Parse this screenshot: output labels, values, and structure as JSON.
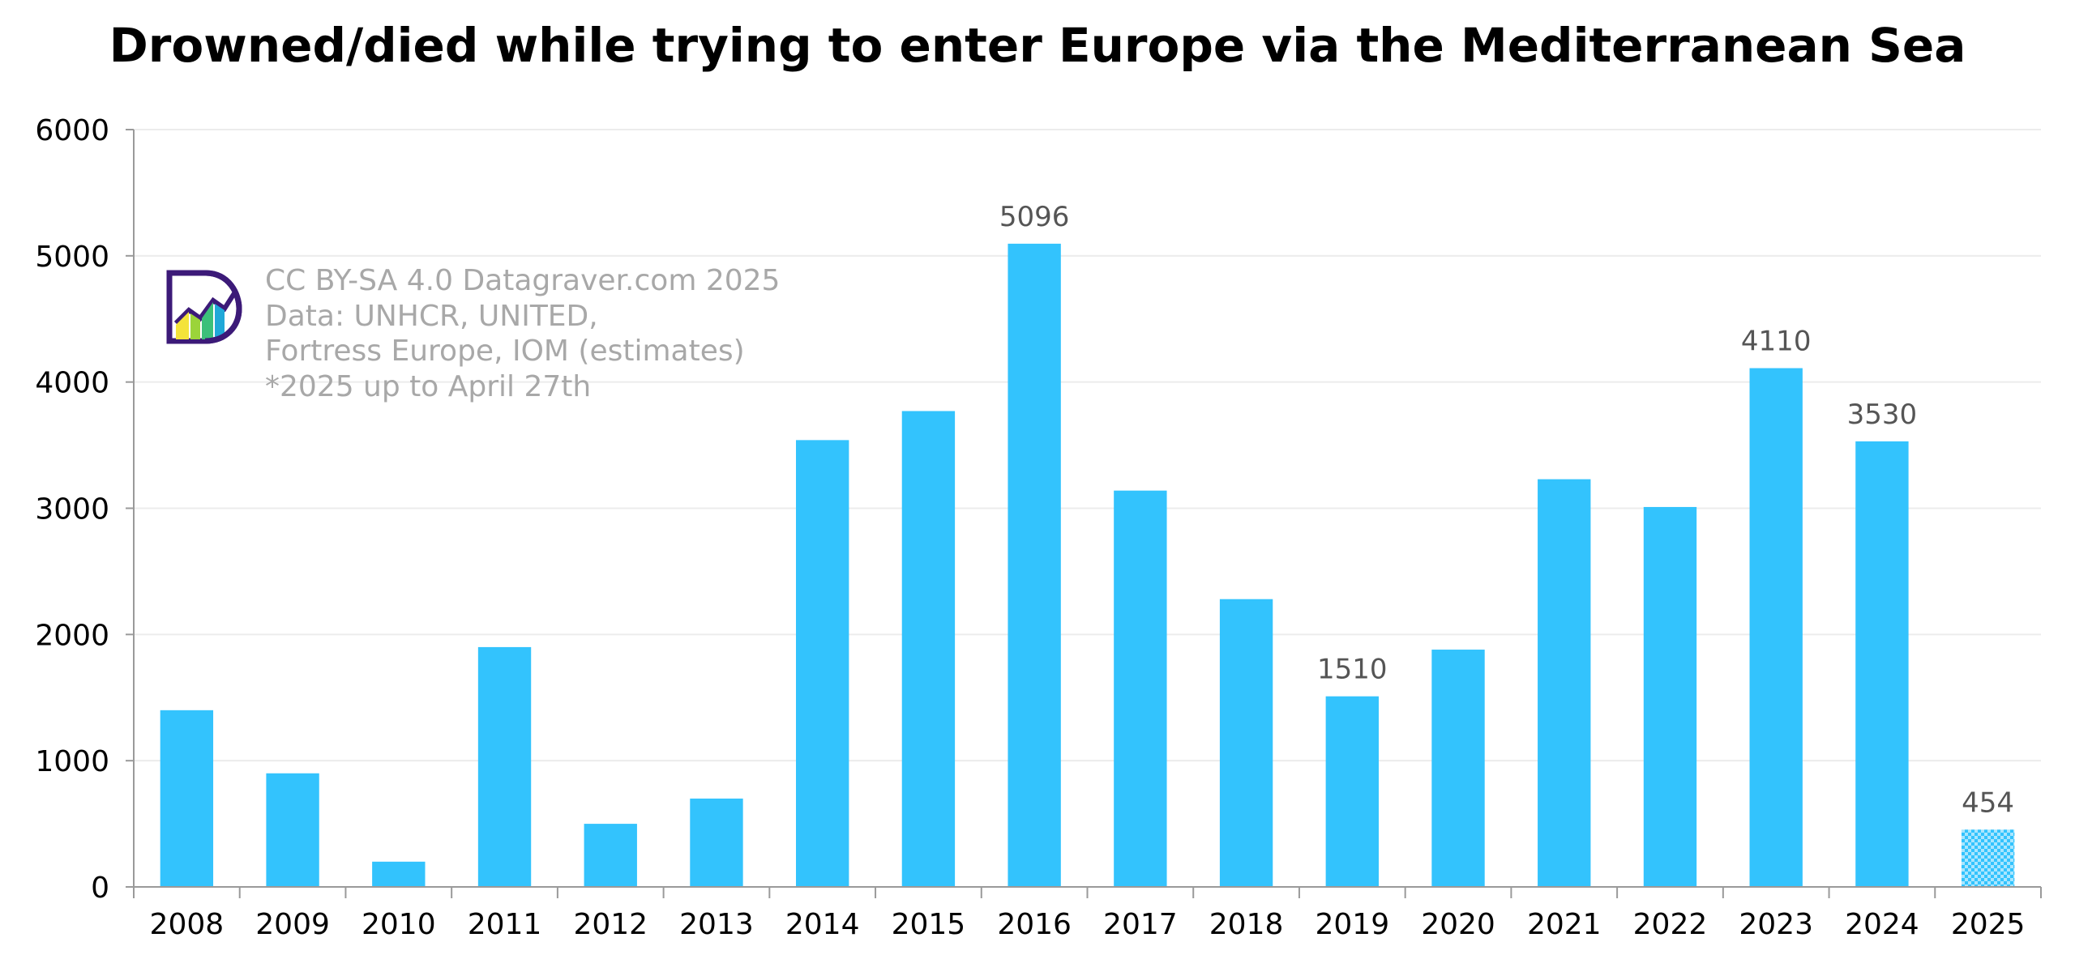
{
  "chart_data": {
    "type": "bar",
    "title": "Drowned/died while trying to enter Europe via the Mediterranean Sea",
    "xlabel": "",
    "ylabel": "",
    "ylim": [
      0,
      6000
    ],
    "yticks": [
      "0",
      "1000",
      "2000",
      "3000",
      "4000",
      "5000",
      "6000"
    ],
    "categories": [
      "2008",
      "2009",
      "2010",
      "2011",
      "2012",
      "2013",
      "2014",
      "2015",
      "2016",
      "2017",
      "2018",
      "2019",
      "2020",
      "2021",
      "2022",
      "2023",
      "2024",
      "2025"
    ],
    "values": [
      1400,
      900,
      200,
      1900,
      500,
      700,
      3540,
      3770,
      5096,
      3140,
      2280,
      1510,
      1880,
      3230,
      3010,
      4110,
      3530,
      454
    ],
    "data_labels": [
      "",
      "",
      "",
      "",
      "",
      "",
      "",
      "",
      "5096",
      "",
      "",
      "1510",
      "",
      "",
      "",
      "4110",
      "3530",
      "454"
    ],
    "bar_color": "#33c3fd",
    "partial_category": "2025",
    "grid": true,
    "legend": "none"
  },
  "credit": {
    "logo_icon": "datagraver-logo-icon",
    "lines": [
      "CC BY-SA 4.0 Datagraver.com 2025",
      "Data: UNHCR, UNITED,",
      "Fortress Europe, IOM (estimates)",
      "*2025 up to April 27th"
    ]
  }
}
